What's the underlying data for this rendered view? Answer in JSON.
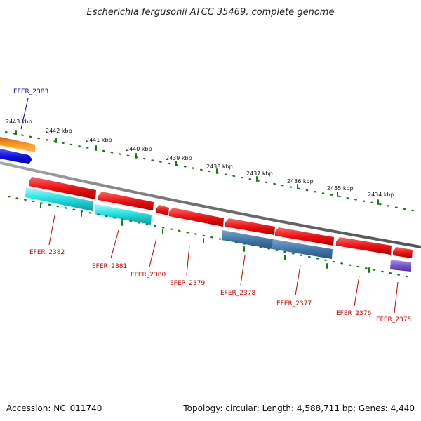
{
  "title": "Escherichia fergusonii ATCC 35469, complete genome",
  "footer": {
    "accession": "Accession: NC_011740",
    "summary": "Topology: circular; Length: 4,588,711 bp; Genes: 4,440"
  },
  "colors": {
    "backbone": "#808080",
    "tick": "#1a7a1a",
    "gene_red": "#ee1111",
    "gene_cyan": "#22dddd",
    "gene_steel": "#4477aa",
    "gene_orange": "#ff9922",
    "gene_blue": "#1111dd",
    "gene_purple": "#7755cc",
    "label_red": "#cc0000",
    "label_blue": "#0000aa"
  },
  "scale_labels": [
    "2443 kbp",
    "2442 kbp",
    "2441 kbp",
    "2440 kbp",
    "2439 kbp",
    "2438 kbp",
    "2437 kbp",
    "2436 kbp",
    "2435 kbp",
    "2434 kbp"
  ],
  "gene_labels": [
    "EFER_2383",
    "EFER_2382",
    "EFER_2381",
    "EFER_2380",
    "EFER_2379",
    "EFER_2378",
    "EFER_2377",
    "EFER_2376",
    "EFER_2375"
  ]
}
